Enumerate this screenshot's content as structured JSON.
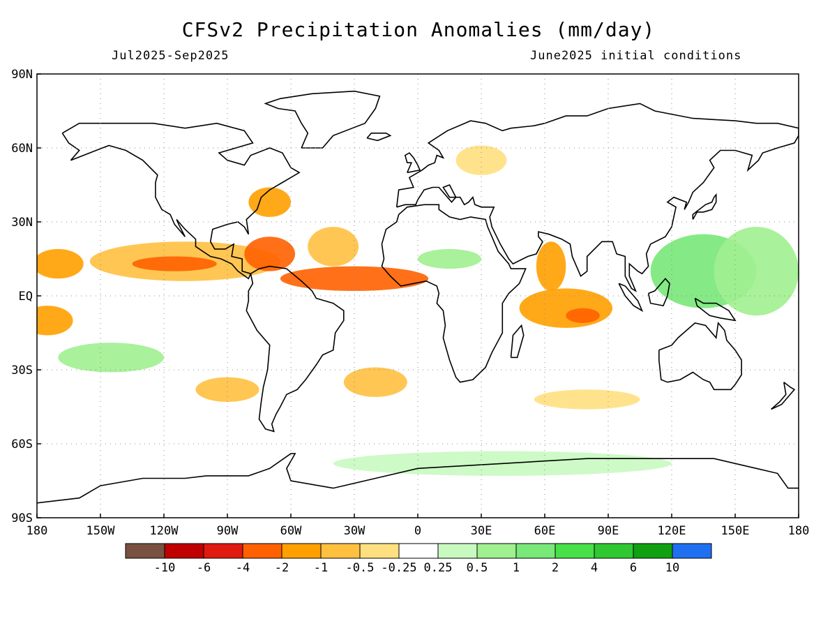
{
  "title": "CFSv2 Precipitation Anomalies (mm/day)",
  "period": "Jul2025-Sep2025",
  "init": "June2025 initial conditions",
  "lat_labels": [
    "90N",
    "60N",
    "30N",
    "EQ",
    "30S",
    "60S",
    "90S"
  ],
  "lat_values": [
    90,
    60,
    30,
    0,
    -30,
    -60,
    -90
  ],
  "lon_labels": [
    "180",
    "150W",
    "120W",
    "90W",
    "60W",
    "30W",
    "0",
    "30E",
    "60E",
    "90E",
    "120E",
    "150E",
    "180"
  ],
  "lon_values": [
    -180,
    -150,
    -120,
    -90,
    -60,
    -30,
    0,
    30,
    60,
    90,
    120,
    150,
    180
  ],
  "colorbar": {
    "colors": [
      "#7a5040",
      "#c00000",
      "#e01a10",
      "#ff6000",
      "#ffa000",
      "#ffc040",
      "#ffe080",
      "#ffffff",
      "#c8fac0",
      "#a0f090",
      "#78e878",
      "#48e048",
      "#30c830",
      "#10a010",
      "#1e70f0"
    ],
    "labels": [
      "-10",
      "-6",
      "-4",
      "-2",
      "-1",
      "-0.5",
      "-0.25",
      "0.25",
      "0.5",
      "1",
      "2",
      "4",
      "6",
      "10"
    ]
  },
  "anomaly_regions": [
    {
      "name": "eastern-pacific-itcz",
      "lon": -110,
      "lat": 14,
      "rx": 45,
      "ry": 8,
      "color": "#ffc040",
      "level": -1
    },
    {
      "name": "eastern-pacific-core",
      "lon": -115,
      "lat": 13,
      "rx": 20,
      "ry": 3,
      "color": "#ff6000",
      "level": -2
    },
    {
      "name": "western-pacific-north",
      "lon": -170,
      "lat": 13,
      "rx": 12,
      "ry": 6,
      "color": "#ffa000",
      "level": -1
    },
    {
      "name": "caribbean",
      "lon": -70,
      "lat": 17,
      "rx": 12,
      "ry": 7,
      "color": "#ff6000",
      "level": -2
    },
    {
      "name": "atlantic-itcz",
      "lon": -30,
      "lat": 7,
      "rx": 35,
      "ry": 5,
      "color": "#ff6000",
      "level": -2
    },
    {
      "name": "north-atlantic-west",
      "lon": -40,
      "lat": 20,
      "rx": 12,
      "ry": 8,
      "color": "#ffc040",
      "level": -0.5
    },
    {
      "name": "us-east-coast",
      "lon": -70,
      "lat": 38,
      "rx": 10,
      "ry": 6,
      "color": "#ffa000",
      "level": -1
    },
    {
      "name": "indian-ocean-south",
      "lon": 70,
      "lat": -5,
      "rx": 22,
      "ry": 8,
      "color": "#ffa000",
      "level": -1
    },
    {
      "name": "indian-ocean-core",
      "lon": 78,
      "lat": -8,
      "rx": 8,
      "ry": 3,
      "color": "#ff6000",
      "level": -2
    },
    {
      "name": "arabian-sea",
      "lon": 63,
      "lat": 12,
      "rx": 7,
      "ry": 10,
      "color": "#ffa000",
      "level": -1
    },
    {
      "name": "west-pacific-warm-pool",
      "lon": 135,
      "lat": 10,
      "rx": 25,
      "ry": 15,
      "color": "#78e878",
      "level": 2
    },
    {
      "name": "central-pacific-north",
      "lon": 160,
      "lat": 10,
      "rx": 20,
      "ry": 18,
      "color": "#a0f090",
      "level": 1
    },
    {
      "name": "south-pacific-east",
      "lon": -175,
      "lat": -10,
      "rx": 12,
      "ry": 6,
      "color": "#ffa000",
      "level": -1
    },
    {
      "name": "south-pacific-green",
      "lon": -145,
      "lat": -25,
      "rx": 25,
      "ry": 6,
      "color": "#a0f090",
      "level": 0.5
    },
    {
      "name": "south-pacific-subtropics",
      "lon": -90,
      "lat": -38,
      "rx": 15,
      "ry": 5,
      "color": "#ffc040",
      "level": -0.5
    },
    {
      "name": "south-atlantic",
      "lon": -20,
      "lat": -35,
      "rx": 15,
      "ry": 6,
      "color": "#ffc040",
      "level": -0.5
    },
    {
      "name": "southern-ocean",
      "lon": 40,
      "lat": -68,
      "rx": 80,
      "ry": 5,
      "color": "#c8fac0",
      "level": 0.25
    },
    {
      "name": "southern-indian",
      "lon": 80,
      "lat": -42,
      "rx": 25,
      "ry": 4,
      "color": "#ffe080",
      "level": -0.25
    },
    {
      "name": "europe",
      "lon": 30,
      "lat": 55,
      "rx": 12,
      "ry": 6,
      "color": "#ffe080",
      "level": -0.25
    },
    {
      "name": "west-africa-sahel",
      "lon": 15,
      "lat": 15,
      "rx": 15,
      "ry": 4,
      "color": "#a0f090",
      "level": 0.5
    }
  ]
}
